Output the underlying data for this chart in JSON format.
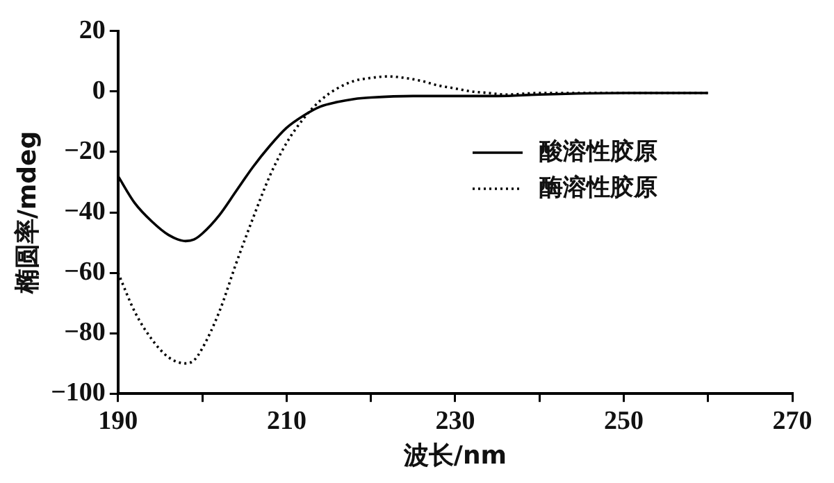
{
  "chart_data": {
    "type": "line",
    "xlabel": "波长/nm",
    "ylabel": "椭圆率/mdeg",
    "xlim": [
      190,
      270
    ],
    "xticks": [
      190,
      {
        "value": 200,
        "label": null
      },
      210,
      {
        "value": 220,
        "label": null
      },
      230,
      {
        "value": 240,
        "label": null
      },
      250,
      {
        "value": 260,
        "label": null
      },
      270
    ],
    "ylim": [
      -100,
      20
    ],
    "yticks": [
      -100,
      -80,
      -60,
      -40,
      -20,
      0,
      20
    ],
    "grid": false,
    "legend": "right",
    "marker": "none",
    "series": [
      {
        "name": "酸溶性胶原",
        "color": "#000000",
        "line_style": "solid",
        "x": [
          190,
          192,
          194,
          196,
          198,
          199,
          200,
          202,
          204,
          206,
          208,
          210,
          212,
          214,
          216,
          218,
          220,
          225,
          230,
          235,
          240,
          250,
          260
        ],
        "values": [
          -28,
          -37,
          -43,
          -47.5,
          -49.5,
          -49,
          -47,
          -41,
          -33,
          -25,
          -18,
          -12,
          -8,
          -5,
          -3.5,
          -2.5,
          -2,
          -1.5,
          -1.5,
          -1.5,
          -1,
          -0.5,
          -0.5
        ]
      },
      {
        "name": "酶溶性胶原",
        "color": "#000000",
        "line_style": "dotted",
        "x": [
          190,
          192,
          194,
          196,
          198,
          199,
          200,
          202,
          204,
          206,
          208,
          210,
          212,
          214,
          216,
          218,
          220,
          222,
          224,
          226,
          228,
          230,
          232,
          234,
          236,
          240,
          250,
          260
        ],
        "values": [
          -60,
          -73,
          -82,
          -88,
          -90,
          -89,
          -85,
          -73,
          -57,
          -42,
          -28,
          -17,
          -9,
          -3,
          1,
          3.5,
          4.5,
          5,
          4.5,
          3.5,
          2,
          1,
          0,
          -0.5,
          -1,
          -0.5,
          -0.5,
          -0.5
        ]
      }
    ]
  }
}
